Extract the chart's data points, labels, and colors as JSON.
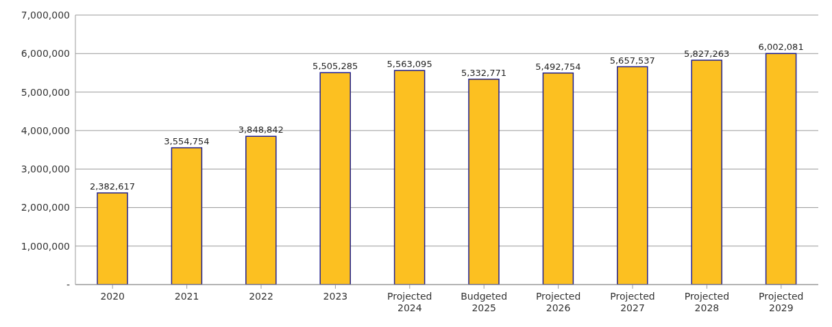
{
  "chart_data": {
    "type": "bar",
    "categories": [
      "2020",
      "2021",
      "2022",
      "2023",
      "Projected\n2024",
      "Budgeted\n2025",
      "Projected\n2026",
      "Projected\n2027",
      "Projected\n2028",
      "Projected\n2029"
    ],
    "values": [
      2382617,
      3554754,
      3848842,
      5505285,
      5563095,
      5332771,
      5492754,
      5657537,
      5827263,
      6002081
    ],
    "value_labels": [
      "2,382,617",
      "3,554,754",
      "3,848,842",
      "5,505,285",
      "5,563,095",
      "5,332,771",
      "5,492,754",
      "5,657,537",
      "5,827,263",
      "6,002,081"
    ],
    "color": "#fcc021",
    "ylim": [
      0,
      7000000
    ],
    "yticks": [
      {
        "value": 0,
        "label": "-"
      },
      {
        "value": 1000000,
        "label": "1,000,000"
      },
      {
        "value": 2000000,
        "label": "2,000,000"
      },
      {
        "value": 3000000,
        "label": "3,000,000"
      },
      {
        "value": 4000000,
        "label": "4,000,000"
      },
      {
        "value": 5000000,
        "label": "5,000,000"
      },
      {
        "value": 6000000,
        "label": "6,000,000"
      },
      {
        "value": 7000000,
        "label": "7,000,000"
      }
    ],
    "grid": "y"
  }
}
